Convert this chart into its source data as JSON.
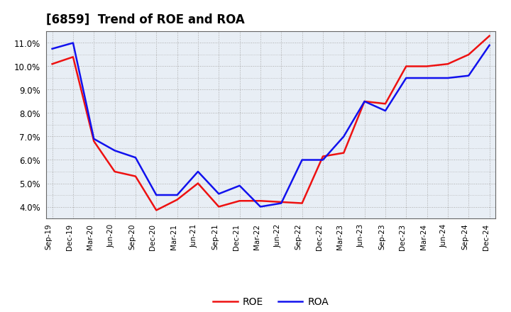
{
  "title": "[6859]  Trend of ROE and ROA",
  "x_labels": [
    "Sep-19",
    "Dec-19",
    "Mar-20",
    "Jun-20",
    "Sep-20",
    "Dec-20",
    "Mar-21",
    "Jun-21",
    "Sep-21",
    "Dec-21",
    "Mar-22",
    "Jun-22",
    "Sep-22",
    "Dec-22",
    "Mar-23",
    "Jun-23",
    "Sep-23",
    "Dec-23",
    "Mar-24",
    "Jun-24",
    "Sep-24",
    "Dec-24"
  ],
  "roe": [
    10.1,
    10.4,
    6.8,
    5.5,
    5.3,
    3.85,
    4.3,
    5.0,
    4.0,
    4.25,
    4.25,
    4.2,
    4.15,
    6.15,
    6.3,
    8.5,
    8.4,
    10.0,
    10.0,
    10.1,
    10.5,
    11.3
  ],
  "roa": [
    10.75,
    11.0,
    6.9,
    6.4,
    6.1,
    4.5,
    4.5,
    5.5,
    4.55,
    4.9,
    4.0,
    4.15,
    6.0,
    6.0,
    7.0,
    8.5,
    8.1,
    9.5,
    9.5,
    9.5,
    9.6,
    10.9
  ],
  "roe_color": "#ee1111",
  "roa_color": "#1111ee",
  "ylim_min": 3.5,
  "ylim_max": 11.5,
  "yticks": [
    4.0,
    5.0,
    6.0,
    7.0,
    8.0,
    9.0,
    10.0,
    11.0
  ],
  "ytick_labels": [
    "4.0%",
    "5.0%",
    "6.0%",
    "7.0%",
    "8.0%",
    "9.0%",
    "10.0%",
    "11.0%"
  ],
  "background_color": "#ffffff",
  "plot_bg_color": "#e8eef5",
  "grid_color": "#aaaaaa",
  "legend_roe": "ROE",
  "legend_roa": "ROA",
  "line_width": 1.8
}
